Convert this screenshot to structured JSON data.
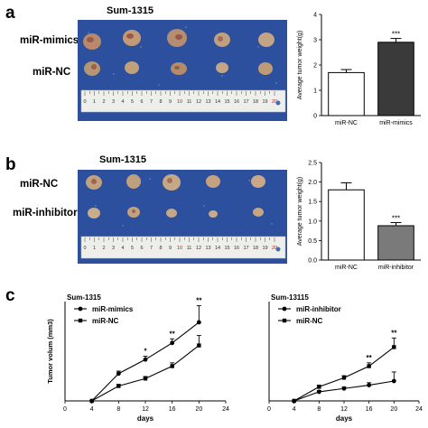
{
  "panels": {
    "a": {
      "letter": "a",
      "title": "Sum-1315",
      "rows": [
        "miR-mimics",
        "miR-NC"
      ],
      "ruler_numbers": [
        "0",
        "1",
        "2",
        "3",
        "4",
        "5",
        "6",
        "7",
        "8",
        "9",
        "10",
        "11",
        "12",
        "13",
        "14",
        "15",
        "16",
        "17",
        "18",
        "19",
        "20"
      ]
    },
    "b": {
      "letter": "b",
      "title": "Sum-1315",
      "rows": [
        "miR-NC",
        "miR-inhibitor"
      ],
      "ruler_numbers": [
        "0",
        "1",
        "2",
        "3",
        "4",
        "5",
        "6",
        "7",
        "8",
        "9",
        "10",
        "11",
        "12",
        "13",
        "14",
        "15",
        "16",
        "17",
        "18",
        "19",
        "20"
      ]
    },
    "c": {
      "letter": "c"
    }
  },
  "colors": {
    "cloth_blue": "#2c4f9e",
    "ruler": "#eeeeea",
    "dark_bar": "#3a3a3a",
    "gray_bar": "#7a7a7a",
    "white_bar": "#ffffff"
  },
  "chart_data": [
    {
      "type": "bar",
      "panel": "a",
      "categories": [
        "miR-NC",
        "miR-mimics"
      ],
      "values": [
        1.7,
        2.9
      ],
      "errors": [
        0.12,
        0.15
      ],
      "colors": [
        "#ffffff",
        "#3a3a3a"
      ],
      "annotations": [
        "",
        "***"
      ],
      "ylabel": "Average tumor weight(g)",
      "ylim": [
        0,
        4
      ],
      "yticks": [
        0,
        1,
        2,
        3,
        4
      ]
    },
    {
      "type": "bar",
      "panel": "b",
      "categories": [
        "miR-NC",
        "miR-inhibitor"
      ],
      "values": [
        1.8,
        0.88
      ],
      "errors": [
        0.18,
        0.08
      ],
      "colors": [
        "#ffffff",
        "#7a7a7a"
      ],
      "annotations": [
        "",
        "***"
      ],
      "ylabel": "Average tumor weight(g)",
      "ylim": [
        0,
        2.5
      ],
      "yticks": [
        0.0,
        0.5,
        1.0,
        1.5,
        2.0,
        2.5
      ],
      "ytick_labels": [
        "0.0",
        "0.5",
        "1.0",
        "1.5",
        "2.0",
        "2.5"
      ]
    },
    {
      "type": "line",
      "panel": "c-left",
      "title": "Sum-1315",
      "xlabel": "days",
      "ylabel": "Tumor volum (mm3)",
      "x": [
        4,
        8,
        12,
        16,
        20
      ],
      "xlim": [
        0,
        24
      ],
      "xticks": [
        0,
        4,
        8,
        12,
        16,
        20,
        24
      ],
      "ylim": [
        0,
        1200
      ],
      "series": [
        {
          "name": "miR-mimics",
          "marker": "circle",
          "values": [
            0,
            330,
            500,
            700,
            950
          ],
          "errors": [
            0,
            30,
            40,
            50,
            200
          ]
        },
        {
          "name": "miR-NC",
          "marker": "square",
          "values": [
            0,
            180,
            270,
            420,
            670
          ],
          "errors": [
            0,
            20,
            25,
            40,
            120
          ]
        }
      ],
      "annotations": [
        {
          "x": 12,
          "text": "*"
        },
        {
          "x": 16,
          "text": "**"
        },
        {
          "x": 20,
          "text": "**"
        }
      ]
    },
    {
      "type": "line",
      "panel": "c-right",
      "title": "Sum-13115",
      "xlabel": "days",
      "ylabel": "",
      "x": [
        4,
        8,
        12,
        16,
        20
      ],
      "xlim": [
        0,
        24
      ],
      "xticks": [
        0,
        4,
        8,
        12,
        16,
        20,
        24
      ],
      "ylim": [
        0,
        1200
      ],
      "series": [
        {
          "name": "miR-inhibitor",
          "marker": "circle",
          "values": [
            0,
            110,
            150,
            190,
            240
          ],
          "errors": [
            0,
            15,
            20,
            30,
            110
          ]
        },
        {
          "name": "miR-NC",
          "marker": "square",
          "values": [
            0,
            170,
            280,
            420,
            650
          ],
          "errors": [
            0,
            20,
            25,
            40,
            110
          ]
        }
      ],
      "annotations": [
        {
          "x": 16,
          "text": "**"
        },
        {
          "x": 20,
          "text": "**"
        }
      ]
    }
  ]
}
